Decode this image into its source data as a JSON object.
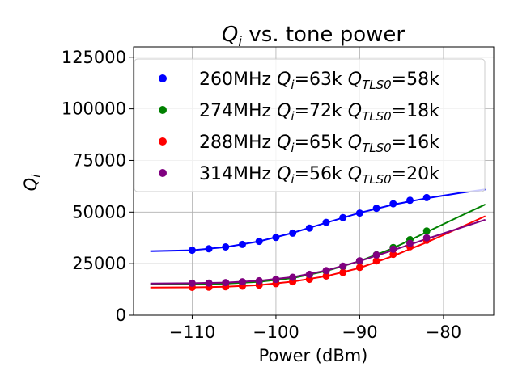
{
  "chart_data": {
    "type": "scatter",
    "title_symbol": "Q",
    "title_subscript": "i",
    "title_rest": " vs. tone power",
    "xlabel": "Power (dBm)",
    "ylabel_symbol": "Q",
    "ylabel_subscript": "i",
    "xlim": [
      -117,
      -74
    ],
    "ylim": [
      0,
      130000
    ],
    "xticks": [
      -110,
      -100,
      -90,
      -80
    ],
    "xtick_labels": [
      "−110",
      "−100",
      "−90",
      "−80"
    ],
    "yticks": [
      0,
      25000,
      50000,
      75000,
      100000,
      125000
    ],
    "ytick_labels": [
      "0",
      "25000",
      "50000",
      "75000",
      "100000",
      "125000"
    ],
    "grid": true,
    "legend_position": "top-right",
    "series": [
      {
        "name": "260MHz",
        "legend_prefix": "260MHz ",
        "qi_label": "=63k ",
        "qtls_label": "=58k",
        "color": "#0000ff",
        "points": [
          [
            -110,
            31500
          ],
          [
            -108,
            32200
          ],
          [
            -106,
            33100
          ],
          [
            -104,
            34300
          ],
          [
            -102,
            35800
          ],
          [
            -100,
            37700
          ],
          [
            -98,
            39800
          ],
          [
            -96,
            42200
          ],
          [
            -94,
            45000
          ],
          [
            -92,
            47300
          ],
          [
            -90,
            49500
          ],
          [
            -88,
            51800
          ],
          [
            -86,
            54000
          ],
          [
            -84,
            55700
          ],
          [
            -82,
            57000
          ]
        ],
        "fit": [
          [
            -115,
            31000
          ],
          [
            -110,
            31500
          ],
          [
            -106,
            33000
          ],
          [
            -102,
            35800
          ],
          [
            -98,
            39900
          ],
          [
            -94,
            44800
          ],
          [
            -90,
            49600
          ],
          [
            -86,
            53600
          ],
          [
            -82,
            56700
          ],
          [
            -78,
            59300
          ],
          [
            -75,
            61000
          ]
        ]
      },
      {
        "name": "274MHz",
        "legend_prefix": "274MHz ",
        "qi_label": "=72k ",
        "qtls_label": "=18k",
        "color": "#008000",
        "points": [
          [
            -110,
            15000
          ],
          [
            -108,
            15100
          ],
          [
            -106,
            15300
          ],
          [
            -104,
            15700
          ],
          [
            -102,
            16200
          ],
          [
            -100,
            17000
          ],
          [
            -98,
            18000
          ],
          [
            -96,
            19400
          ],
          [
            -94,
            21300
          ],
          [
            -92,
            23600
          ],
          [
            -90,
            26200
          ],
          [
            -88,
            29300
          ],
          [
            -86,
            32800
          ],
          [
            -84,
            36600
          ],
          [
            -82,
            40800
          ]
        ],
        "fit": [
          [
            -115,
            15000
          ],
          [
            -110,
            15100
          ],
          [
            -106,
            15300
          ],
          [
            -102,
            16200
          ],
          [
            -98,
            18000
          ],
          [
            -94,
            21400
          ],
          [
            -90,
            26200
          ],
          [
            -86,
            32500
          ],
          [
            -82,
            40300
          ],
          [
            -78,
            48000
          ],
          [
            -75,
            53700
          ]
        ]
      },
      {
        "name": "288MHz",
        "legend_prefix": "288MHz ",
        "qi_label": "=65k ",
        "qtls_label": "=16k",
        "color": "#ff0000",
        "points": [
          [
            -110,
            13500
          ],
          [
            -108,
            13600
          ],
          [
            -106,
            13800
          ],
          [
            -104,
            14100
          ],
          [
            -102,
            14600
          ],
          [
            -100,
            15300
          ],
          [
            -98,
            16200
          ],
          [
            -96,
            17400
          ],
          [
            -94,
            19000
          ],
          [
            -92,
            20700
          ],
          [
            -90,
            23200
          ],
          [
            -88,
            26300
          ],
          [
            -86,
            29500
          ],
          [
            -84,
            33200
          ],
          [
            -82,
            36300
          ]
        ],
        "fit": [
          [
            -115,
            13400
          ],
          [
            -110,
            13500
          ],
          [
            -106,
            13800
          ],
          [
            -102,
            14600
          ],
          [
            -98,
            16300
          ],
          [
            -94,
            18900
          ],
          [
            -90,
            22900
          ],
          [
            -86,
            28700
          ],
          [
            -82,
            35300
          ],
          [
            -78,
            42500
          ],
          [
            -75,
            48000
          ]
        ]
      },
      {
        "name": "314MHz",
        "legend_prefix": "314MHz ",
        "qi_label": "=56k ",
        "qtls_label": "=20k",
        "color": "#800080",
        "points": [
          [
            -110,
            15500
          ],
          [
            -108,
            15600
          ],
          [
            -106,
            15800
          ],
          [
            -104,
            16200
          ],
          [
            -102,
            16700
          ],
          [
            -100,
            17400
          ],
          [
            -98,
            18400
          ],
          [
            -96,
            19800
          ],
          [
            -94,
            21600
          ],
          [
            -92,
            23800
          ],
          [
            -90,
            26400
          ],
          [
            -88,
            29200
          ],
          [
            -86,
            32000
          ],
          [
            -84,
            34800
          ],
          [
            -82,
            37500
          ]
        ],
        "fit": [
          [
            -115,
            15400
          ],
          [
            -110,
            15500
          ],
          [
            -106,
            15800
          ],
          [
            -102,
            16700
          ],
          [
            -98,
            18500
          ],
          [
            -94,
            21700
          ],
          [
            -90,
            26200
          ],
          [
            -86,
            31500
          ],
          [
            -82,
            37000
          ],
          [
            -78,
            42300
          ],
          [
            -75,
            46300
          ]
        ]
      }
    ],
    "legend_sub_i": "i",
    "legend_sub_tls": "TLS0"
  }
}
